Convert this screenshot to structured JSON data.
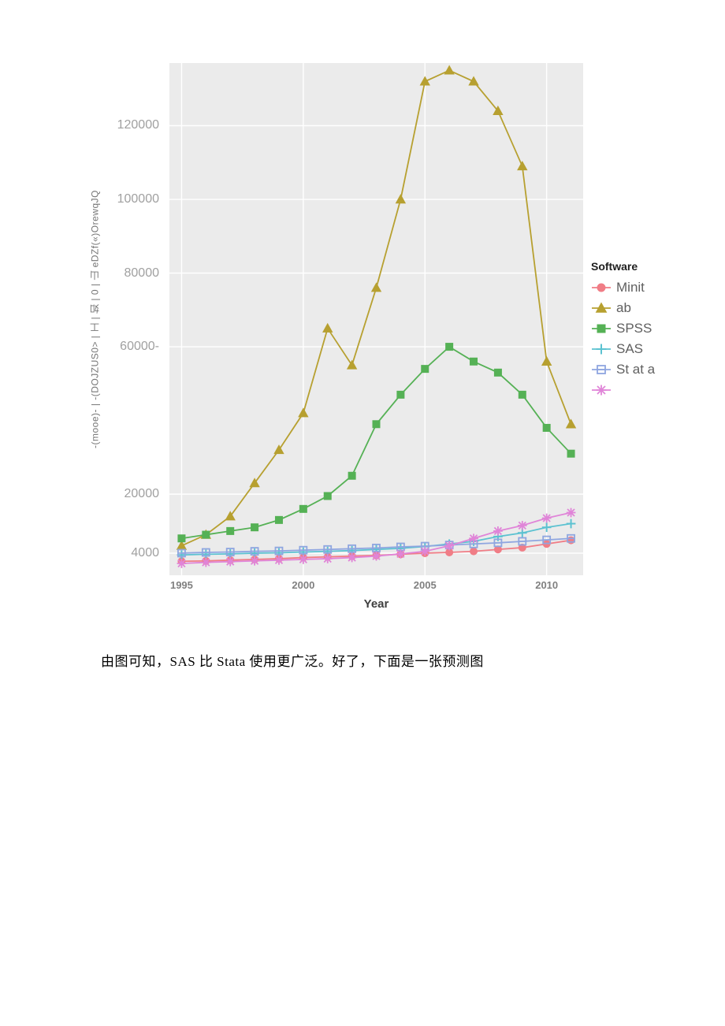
{
  "chart": {
    "type": "line",
    "background_color": "#ebebeb",
    "grid_color": "#ffffff",
    "xlabel": "Year",
    "ylabel": "-(mooe)- | -(DOJZUS0> | 工 | 如 | 0 | 山 eDZf(«)OrewqJQ",
    "xlabel_fontsize": 15,
    "ylabel_fontsize": 12,
    "tick_color": "#a0a0a0",
    "x_min": 1994.5,
    "x_max": 2011.5,
    "y_min": -2000,
    "y_max": 137000,
    "x_ticks": [
      1995,
      2000,
      2005,
      2010
    ],
    "y_ticks": [
      {
        "v": 4000,
        "label": "4000"
      },
      {
        "v": 20000,
        "label": "20000"
      },
      {
        "v": 60000,
        "label": "60000-"
      },
      {
        "v": 80000,
        "label": "80000"
      },
      {
        "v": 100000,
        "label": "100000"
      },
      {
        "v": 120000,
        "label": "120000"
      }
    ],
    "legend_title": "Software",
    "series": [
      {
        "name": "Minit",
        "color": "#f07d86",
        "marker": "circle",
        "x": [
          1995,
          1996,
          1997,
          1998,
          1999,
          2000,
          2001,
          2002,
          2003,
          2004,
          2005,
          2006,
          2007,
          2008,
          2009,
          2010,
          2011
        ],
        "y": [
          1800,
          1900,
          2100,
          2300,
          2500,
          2800,
          3000,
          3200,
          3400,
          3700,
          4000,
          4200,
          4500,
          5000,
          5500,
          6500,
          7500
        ]
      },
      {
        "name": "ab",
        "color": "#b7a030",
        "marker": "triangle",
        "x": [
          1995,
          1996,
          1997,
          1998,
          1999,
          2000,
          2001,
          2002,
          2003,
          2004,
          2005,
          2006,
          2007,
          2008,
          2009,
          2010,
          2011
        ],
        "y": [
          6000,
          9000,
          14000,
          23000,
          32000,
          42000,
          65000,
          55000,
          76000,
          100000,
          132000,
          135000,
          132000,
          124000,
          109000,
          56000,
          39000
        ]
      },
      {
        "name": "SPSS",
        "color": "#55b155",
        "marker": "square",
        "x": [
          1995,
          1996,
          1997,
          1998,
          1999,
          2000,
          2001,
          2002,
          2003,
          2004,
          2005,
          2006,
          2007,
          2008,
          2009,
          2010,
          2011
        ],
        "y": [
          8000,
          9000,
          10000,
          11000,
          13000,
          16000,
          19500,
          25000,
          39000,
          47000,
          54000,
          60000,
          56000,
          53000,
          47000,
          38000,
          31000
        ]
      },
      {
        "name": "SAS",
        "color": "#5cc2d1",
        "marker": "plus",
        "x": [
          1995,
          1996,
          1997,
          1998,
          1999,
          2000,
          2001,
          2002,
          2003,
          2004,
          2005,
          2006,
          2007,
          2008,
          2009,
          2010,
          2011
        ],
        "y": [
          3500,
          3700,
          3800,
          4000,
          4100,
          4300,
          4500,
          4700,
          5000,
          5300,
          5800,
          6500,
          7200,
          8500,
          9500,
          11000,
          12000
        ]
      },
      {
        "name": "St at a",
        "color": "#8fa6e0",
        "marker": "open-square",
        "x": [
          1995,
          1996,
          1997,
          1998,
          1999,
          2000,
          2001,
          2002,
          2003,
          2004,
          2005,
          2006,
          2007,
          2008,
          2009,
          2010,
          2011
        ],
        "y": [
          4000,
          4200,
          4300,
          4500,
          4600,
          4800,
          5000,
          5200,
          5400,
          5700,
          5900,
          6200,
          6500,
          6800,
          7200,
          7600,
          8000
        ]
      },
      {
        "name": "",
        "color": "#e085d8",
        "marker": "asterisk",
        "x": [
          1995,
          1996,
          1997,
          1998,
          1999,
          2000,
          2001,
          2002,
          2003,
          2004,
          2005,
          2006,
          2007,
          2008,
          2009,
          2010,
          2011
        ],
        "y": [
          1200,
          1500,
          1700,
          1900,
          2100,
          2300,
          2500,
          2800,
          3200,
          3800,
          4500,
          6000,
          8000,
          10000,
          11500,
          13500,
          15000
        ]
      }
    ]
  },
  "caption": "由图可知，SAS 比 Stata 使用更广泛。好了，下面是一张预测图"
}
